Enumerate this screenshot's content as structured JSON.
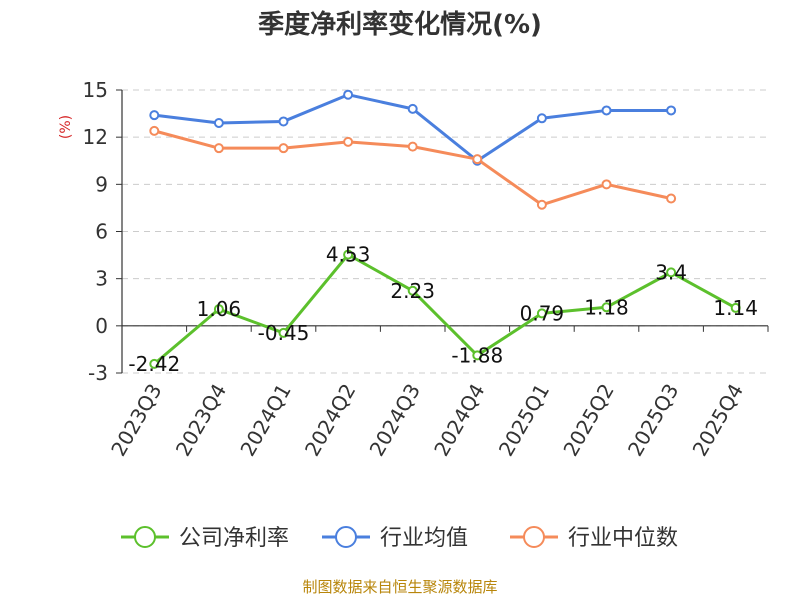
{
  "chart_data": {
    "type": "line",
    "title": "季度净利率变化情况(%)",
    "ylabel": "(%)",
    "xlabel": "",
    "categories": [
      "2023Q3",
      "2023Q4",
      "2024Q1",
      "2024Q2",
      "2024Q3",
      "2024Q4",
      "2025Q1",
      "2025Q2",
      "2025Q3",
      "2025Q4"
    ],
    "ylim": [
      -3,
      15
    ],
    "yticks": [
      -3,
      0,
      3,
      6,
      9,
      12,
      15
    ],
    "grid": true,
    "legend_position": "bottom",
    "series": [
      {
        "name": "公司净利率",
        "color": "#5cc02c",
        "labeled": true,
        "values": [
          -2.42,
          1.06,
          -0.45,
          4.53,
          2.23,
          -1.88,
          0.79,
          1.18,
          3.4,
          1.14
        ],
        "labels": [
          "-2.42",
          "1.06",
          "-0.45",
          "4.53",
          "2.23",
          "-1.88",
          "0.79",
          "1.18",
          "3.4",
          "1.14"
        ]
      },
      {
        "name": "行业均值",
        "color": "#4a7fde",
        "labeled": false,
        "values": [
          13.4,
          12.9,
          13.0,
          14.7,
          13.8,
          10.5,
          13.2,
          13.7,
          13.7,
          null
        ]
      },
      {
        "name": "行业中位数",
        "color": "#f58b5a",
        "labeled": false,
        "values": [
          12.4,
          11.3,
          11.3,
          11.7,
          11.4,
          10.6,
          7.7,
          9.0,
          8.1,
          null
        ]
      }
    ]
  },
  "source": "制图数据来自恒生聚源数据库"
}
